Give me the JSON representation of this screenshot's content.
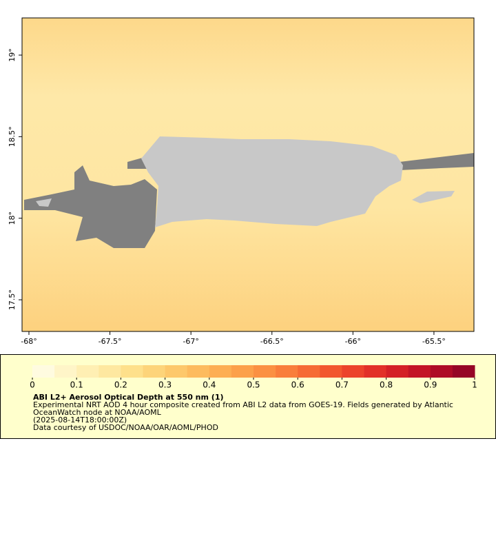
{
  "map": {
    "xaxis": {
      "lim": [
        -68.0425,
        -65.253
      ],
      "ticks": [
        {
          "value": -68,
          "label": "-68°"
        },
        {
          "value": -67.5,
          "label": "-67.5°"
        },
        {
          "value": -67,
          "label": "-67°"
        },
        {
          "value": -66.5,
          "label": "-66.5°"
        },
        {
          "value": -66,
          "label": "-66°"
        },
        {
          "value": -65.5,
          "label": "-65.5°"
        }
      ]
    },
    "yaxis": {
      "lim": [
        17.306,
        19.228
      ],
      "ticks": [
        {
          "value": 17.5,
          "label": "17.5°"
        },
        {
          "value": 18,
          "label": "18°"
        },
        {
          "value": 18.5,
          "label": "18.5°"
        },
        {
          "value": 19,
          "label": "19°"
        }
      ]
    },
    "colorbar": {
      "lim": [
        0,
        1
      ],
      "ticks": [
        0,
        0.1,
        0.2,
        0.3,
        0.4,
        0.5,
        0.6,
        0.7,
        0.8,
        0.9,
        1
      ],
      "colors": [
        "#fffbe0",
        "#fff5c8",
        "#ffefb3",
        "#fee8a0",
        "#fee08b",
        "#fdd47a",
        "#fdc86b",
        "#fdbb5e",
        "#fdae53",
        "#fca04a",
        "#fb9042",
        "#f97e3b",
        "#f66b34",
        "#f2572f",
        "#ec432b",
        "#e23028",
        "#d42026",
        "#c31426",
        "#ae0b26",
        "#960526"
      ]
    },
    "legend": {
      "title": "ABI L2+ Aerosol Optical Depth at 550 nm (1)",
      "lines": [
        "Experimental NRT AOD 4 hour composite created from ABI L2 data from GOES-19. Fields generated by Atlantic",
        "OceanWatch node at NOAA/AOML",
        "(2025-08-14T18:00:00Z)",
        "Data courtesy of USDOC/NOAA/OAR/AOML/PHOD"
      ]
    }
  }
}
